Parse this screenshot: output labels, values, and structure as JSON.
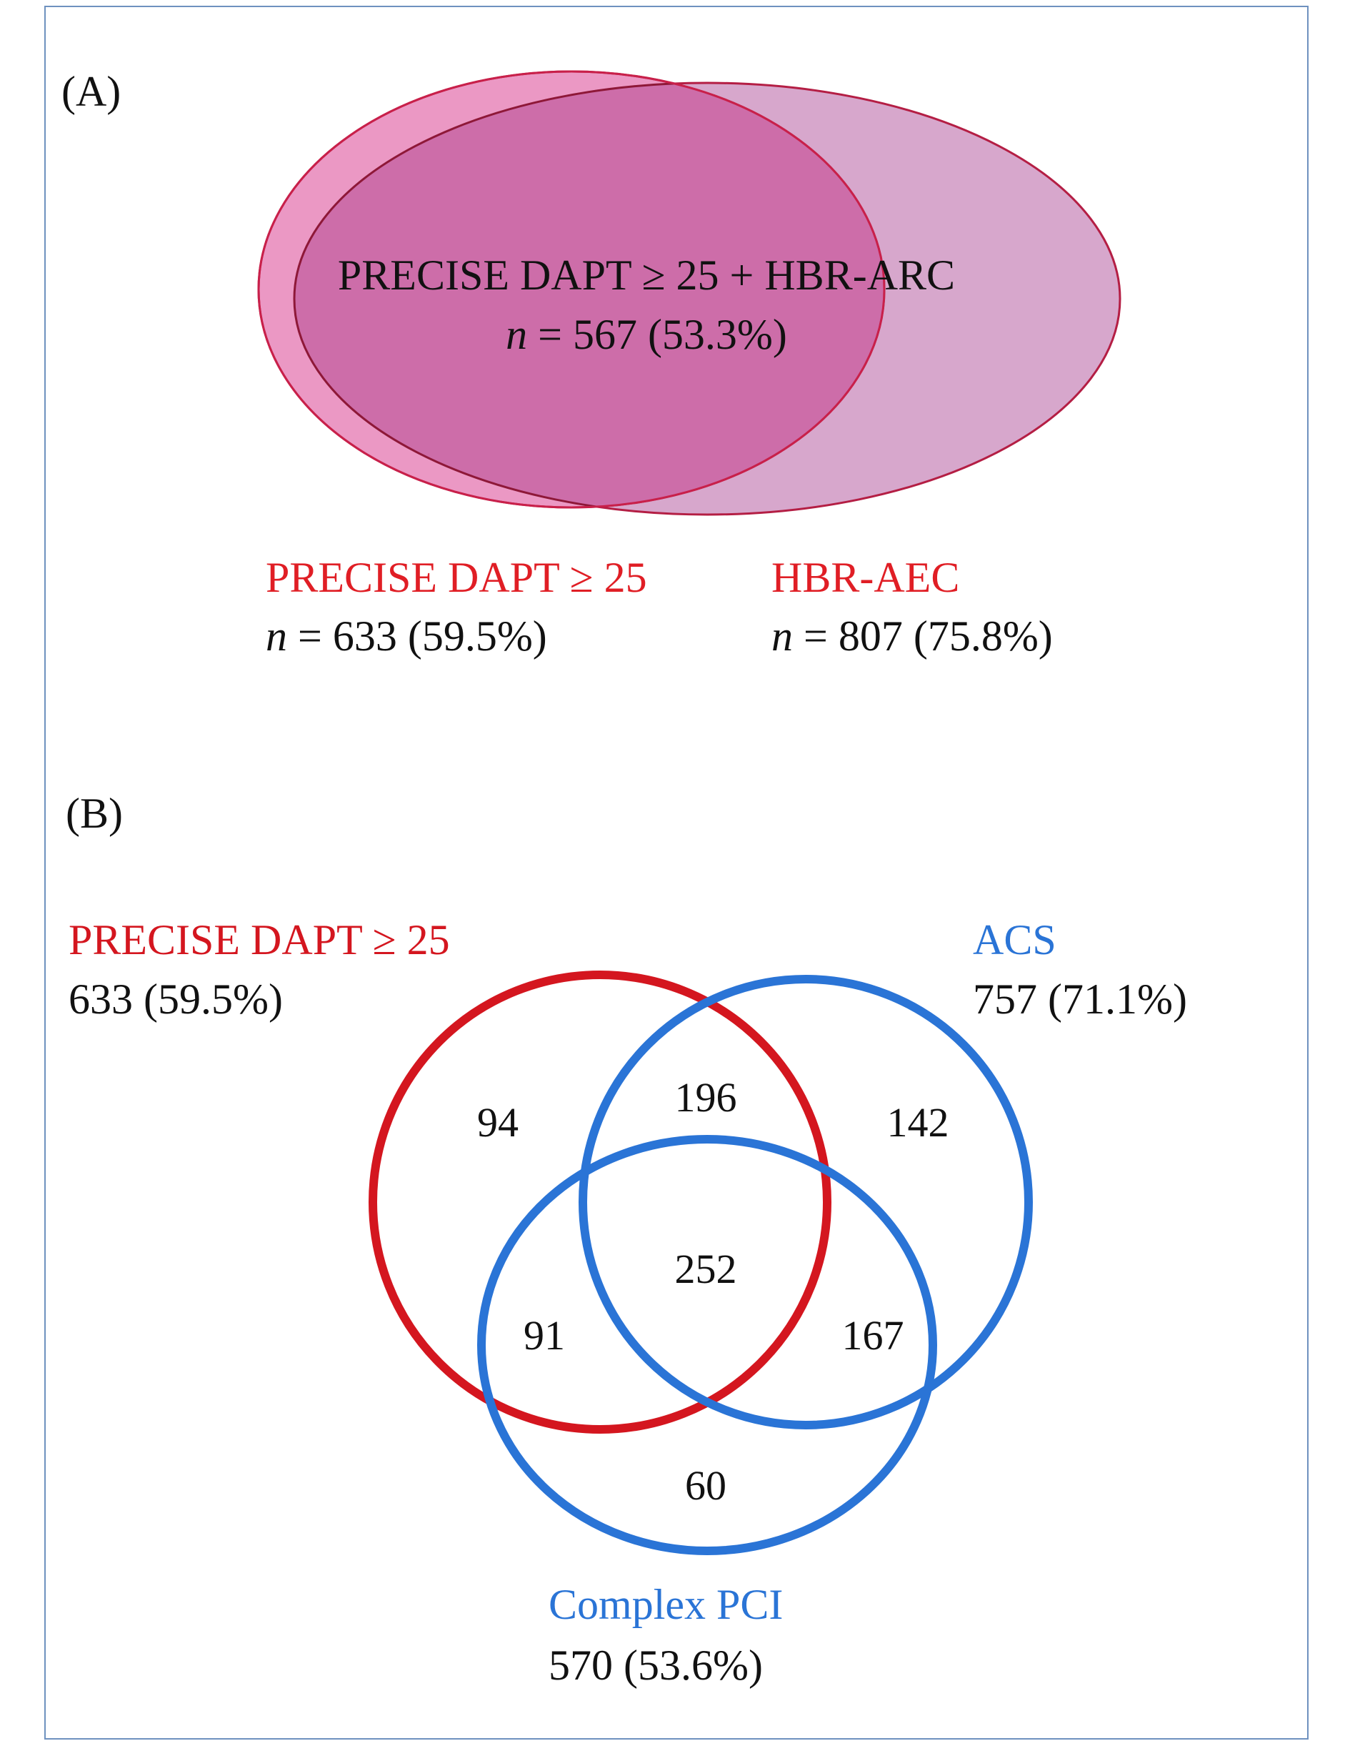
{
  "panel_a": {
    "label": "(A)",
    "intersection": {
      "label": "PRECISE DAPT ≥ 25 + HBR-ARC",
      "n_prefix": "n",
      "n_value": " = 567 (53.3%)"
    },
    "set_left": {
      "label": "PRECISE DAPT ≥ 25",
      "n_prefix": "n",
      "n_value": " = 633 (59.5%)"
    },
    "set_right": {
      "label": "HBR-AEC",
      "n_prefix": "n",
      "n_value": " = 807 (75.8%)"
    },
    "colors": {
      "left_fill": "#e98fbf",
      "right_fill": "#d7a7cc",
      "overlap_fill": "#cd6da9",
      "outline": "#b41e44",
      "label": "#e01e25"
    }
  },
  "panel_b": {
    "label": "(B)",
    "sets": {
      "precise": {
        "label": "PRECISE DAPT ≥ 25",
        "count": "633 (59.5%)",
        "color": "#d4161f"
      },
      "acs": {
        "label": "ACS",
        "count": "757 (71.1%)",
        "color": "#2a74d6"
      },
      "pci": {
        "label": "Complex PCI",
        "count": "570 (53.6%)",
        "color": "#2a74d6"
      }
    },
    "regions": {
      "precise_only": "94",
      "precise_acs": "196",
      "acs_only": "142",
      "all_three": "252",
      "precise_pci": "91",
      "acs_pci": "167",
      "pci_only": "60"
    }
  }
}
